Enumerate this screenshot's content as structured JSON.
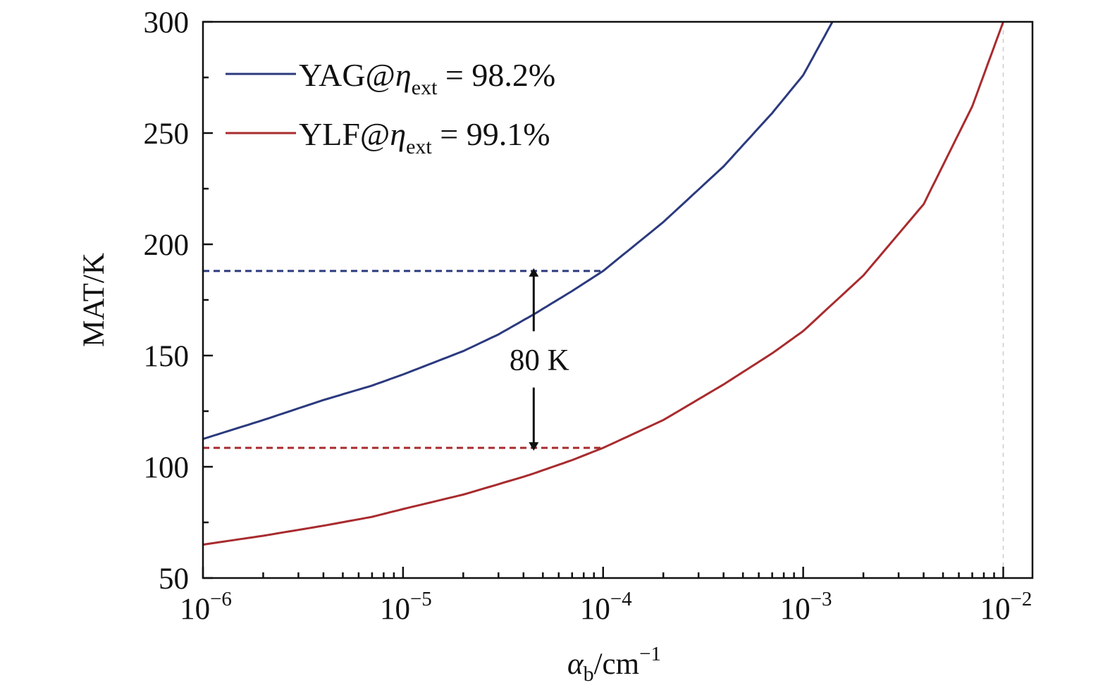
{
  "chart_data": {
    "type": "line",
    "x_scale": "log",
    "xlim": [
      1e-06,
      0.014
    ],
    "ylim": [
      50,
      300
    ],
    "xlabel": {
      "main": "α",
      "sub": "b",
      "unit": "/cm",
      "sup": "−1"
    },
    "ylabel": "MAT/K",
    "x_ticks": [
      {
        "value": 1e-06,
        "base": "10",
        "exp": "−6"
      },
      {
        "value": 1e-05,
        "base": "10",
        "exp": "−5"
      },
      {
        "value": 0.0001,
        "base": "10",
        "exp": "−4"
      },
      {
        "value": 0.001,
        "base": "10",
        "exp": "−3"
      },
      {
        "value": 0.01,
        "base": "10",
        "exp": "−2"
      }
    ],
    "y_ticks": [
      50,
      100,
      150,
      200,
      250,
      300
    ],
    "grid": false,
    "legend_position": "top-left",
    "series": [
      {
        "name": "YAG@η",
        "name_sub": "ext",
        "name_value": " = 98.2%",
        "color": "#2b3a7e",
        "x": [
          1e-06,
          2e-06,
          4e-06,
          7e-06,
          1e-05,
          2e-05,
          3e-05,
          4.5e-05,
          7e-05,
          0.0001,
          0.0002,
          0.0004,
          0.0007,
          0.001,
          0.0014
        ],
        "y": [
          112.5,
          121,
          130,
          136.5,
          141.5,
          152,
          159.5,
          168.5,
          179,
          188,
          210,
          235,
          259,
          276,
          300
        ]
      },
      {
        "name": "YLF@η",
        "name_sub": "ext",
        "name_value": " = 99.1%",
        "color": "#a82b2e",
        "x": [
          1e-06,
          2e-06,
          4e-06,
          7e-06,
          1e-05,
          2e-05,
          4e-05,
          4.5e-05,
          7e-05,
          0.0001,
          0.0002,
          0.0004,
          0.0007,
          0.001,
          0.002,
          0.004,
          0.007,
          0.01
        ],
        "y": [
          65,
          69,
          73.5,
          77.5,
          81,
          87.5,
          95.5,
          97,
          103,
          108.5,
          121,
          137,
          151,
          161,
          186,
          218,
          262,
          300
        ]
      }
    ],
    "reference_lines": [
      {
        "series": 0,
        "y": 188,
        "x_end": 0.0001,
        "color": "#2b3a7e"
      },
      {
        "series": 1,
        "y": 108.5,
        "x_end": 0.0001,
        "color": "#a82b2e"
      },
      {
        "x": 0.01,
        "color": "#cccccc"
      }
    ],
    "annotation": {
      "text": "80 K",
      "x": 4.5e-05,
      "y_top": 188,
      "y_bottom": 108.5,
      "color": "#111111"
    }
  }
}
